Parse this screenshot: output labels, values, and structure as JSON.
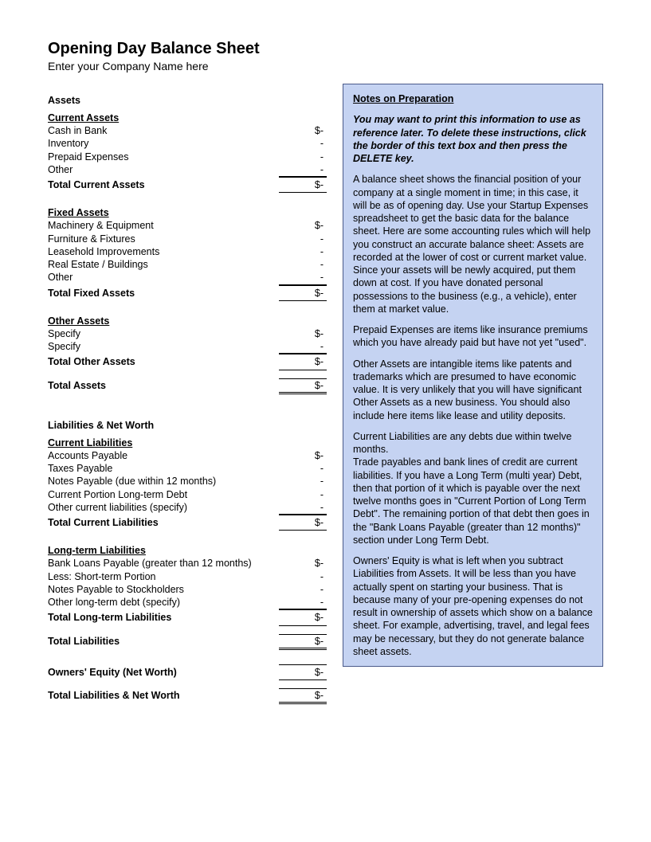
{
  "title": "Opening Day Balance Sheet",
  "subtitle": "Enter your Company Name here",
  "assets": {
    "header": "Assets",
    "current": {
      "header": "Current Assets",
      "items": [
        {
          "label": "Cash in Bank",
          "value": "$-"
        },
        {
          "label": "Inventory",
          "value": "-"
        },
        {
          "label": "Prepaid Expenses",
          "value": "-"
        },
        {
          "label": "Other",
          "value": "-"
        }
      ],
      "total_label": "Total Current Assets",
      "total_value": "$-"
    },
    "fixed": {
      "header": "Fixed Assets",
      "items": [
        {
          "label": "Machinery & Equipment",
          "value": "$-"
        },
        {
          "label": "Furniture & Fixtures",
          "value": "-"
        },
        {
          "label": "Leasehold Improvements",
          "value": "-"
        },
        {
          "label": "Real Estate / Buildings",
          "value": "-"
        },
        {
          "label": "Other",
          "value": "-"
        }
      ],
      "total_label": "Total Fixed Assets",
      "total_value": "$-"
    },
    "other": {
      "header": "Other Assets",
      "items": [
        {
          "label": "Specify",
          "value": "$-"
        },
        {
          "label": "Specify",
          "value": "-"
        }
      ],
      "total_label": "Total Other Assets",
      "total_value": "$-"
    },
    "grand_total_label": "Total Assets",
    "grand_total_value": "$-"
  },
  "liabilities": {
    "header": "Liabilities & Net Worth",
    "current": {
      "header": "Current Liabilities",
      "items": [
        {
          "label": "Accounts Payable",
          "value": "$-"
        },
        {
          "label": "Taxes Payable",
          "value": "-"
        },
        {
          "label": "Notes Payable (due within 12 months)",
          "value": "-"
        },
        {
          "label": "Current Portion Long-term Debt",
          "value": "-"
        },
        {
          "label": "Other current liabilities (specify)",
          "value": "-"
        }
      ],
      "total_label": "Total Current Liabilities",
      "total_value": "$-"
    },
    "longterm": {
      "header": "Long-term Liabilities",
      "items": [
        {
          "label": "Bank Loans Payable (greater than 12 months)",
          "value": "$-"
        },
        {
          "label": "Less: Short-term Portion",
          "value": "-"
        },
        {
          "label": "Notes Payable to Stockholders",
          "value": "-"
        },
        {
          "label": "Other long-term debt (specify)",
          "value": "-"
        }
      ],
      "total_label": "Total Long-term Liabilities",
      "total_value": "$-"
    },
    "total_liab_label": "Total Liabilities",
    "total_liab_value": "$-",
    "equity_label": "Owners' Equity (Net Worth)",
    "equity_value": "$-",
    "grand_total_label": "Total Liabilities & Net Worth",
    "grand_total_value": "$-"
  },
  "notes": {
    "title": "Notes on Preparation",
    "intro": "You may want to print this information to use as reference later. To delete these instructions, click the border of this text box and then press the DELETE key.",
    "paragraphs": [
      "A balance sheet shows the financial position of your company at a single moment in time; in this case, it will be as of opening day. Use your Startup Expenses spreadsheet to get the basic data for the balance sheet. Here are some accounting rules which will help you construct an accurate balance sheet: Assets are recorded at the lower of cost or current market value. Since your assets will be newly acquired, put them down at cost. If you have donated personal possessions to the business (e.g., a vehicle), enter them at market value.",
      "Prepaid Expenses are items like insurance premiums which you have already paid but have not yet \"used\".",
      "Other Assets are intangible items like patents and trademarks which are presumed to have economic value. It is very unlikely that you will have significant Other Assets as a new business. You should also include here items like lease and utility deposits.",
      "Current Liabilities are any debts due within twelve months.\nTrade payables and bank lines of credit are current liabilities. If you have a Long Term (multi year) Debt, then that portion of it which is payable over the next twelve months goes in \"Current Portion of Long Term Debt\". The remaining portion of that debt then goes in the \"Bank Loans Payable (greater than 12 months)\" section under Long Term Debt.",
      "Owners' Equity is what is left when you subtract Liabilities from Assets. It will be less than you have actually spent on starting your business. That is because many of your pre-opening expenses do not result in ownership of assets which show on a balance sheet. For example, advertising, travel, and legal fees may be necessary, but they do not generate balance sheet assets."
    ]
  },
  "colors": {
    "notes_bg": "#c5d3f2",
    "notes_border": "#4a5a8a",
    "text": "#000000",
    "page_bg": "#ffffff"
  }
}
